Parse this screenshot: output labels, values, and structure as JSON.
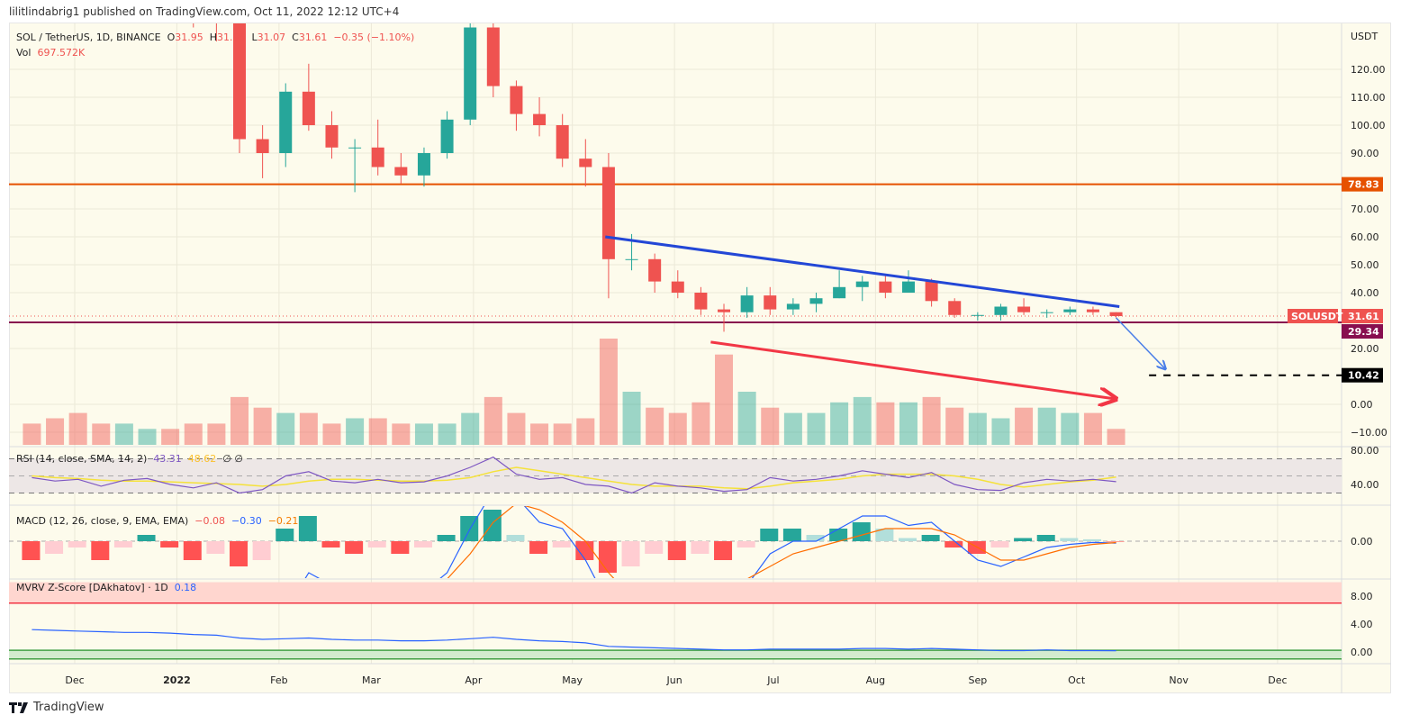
{
  "header": {
    "published": "lilitlindabrig1 published on TradingView.com, Oct 11, 2022 12:12 UTC+4"
  },
  "legend": {
    "symbol": "SOL / TetherUS, 1D, BINANCE",
    "o_label": "O",
    "o": "31.95",
    "h_label": "H",
    "h": "31.96",
    "l_label": "L",
    "l": "31.07",
    "c_label": "C",
    "c": "31.61",
    "change": "−0.35 (−1.10%)",
    "vol_label": "Vol",
    "vol": "697.572K",
    "rsi": "RSI (14, close, SMA, 14, 2)",
    "rsi_val": "43.31",
    "rsi_sma": "48.62",
    "rsi_extra": "∅ ∅",
    "macd": "MACD (12, 26, close, 9, EMA, EMA)",
    "macd_hist": "−0.08",
    "macd_line": "−0.30",
    "macd_signal": "−0.21",
    "mvrv": "MVRV Z-Score [DAkhatov] · 1D",
    "mvrv_val": "0.18"
  },
  "footer": {
    "brand": "TradingView"
  },
  "colors": {
    "up": "#26a69a",
    "down": "#ef5350",
    "background": "#fdfbec",
    "resistance": "#e65100",
    "support": "#880e4f",
    "trend_blue": "#2347d6",
    "trend_red": "#f23645"
  },
  "chart_data": {
    "type": "candlestick",
    "currency_label": "USDT",
    "price_ticks": [
      "120.00",
      "110.00",
      "100.00",
      "90.00",
      "70.00",
      "60.00",
      "50.00",
      "40.00",
      "20.00",
      "0.00",
      "−10.00"
    ],
    "price_tick_values": [
      120,
      110,
      100,
      90,
      70,
      60,
      50,
      40,
      20,
      0,
      -10
    ],
    "time_labels": [
      "Dec",
      "2022",
      "Feb",
      "Mar",
      "Apr",
      "May",
      "Jun",
      "Jul",
      "Aug",
      "Sep",
      "Oct",
      "Nov",
      "Dec"
    ],
    "time_label_dates": [
      "2021-12-01",
      "2022-01-01",
      "2022-02-01",
      "2022-03-01",
      "2022-04-01",
      "2022-05-01",
      "2022-06-01",
      "2022-07-01",
      "2022-08-01",
      "2022-09-01",
      "2022-10-01",
      "2022-11-01",
      "2022-12-01"
    ],
    "candles_weekly_approx": [
      [
        "2021-11-15",
        235,
        240,
        195,
        210
      ],
      [
        "2021-11-22",
        210,
        225,
        185,
        200
      ],
      [
        "2021-11-29",
        200,
        245,
        180,
        195
      ],
      [
        "2021-12-06",
        195,
        200,
        160,
        165
      ],
      [
        "2021-12-13",
        165,
        190,
        150,
        185
      ],
      [
        "2021-12-20",
        185,
        200,
        175,
        190
      ],
      [
        "2021-12-27",
        190,
        205,
        170,
        172
      ],
      [
        "2022-01-03",
        172,
        175,
        135,
        145
      ],
      [
        "2022-01-10",
        145,
        152,
        130,
        140
      ],
      [
        "2022-01-17",
        140,
        145,
        90,
        95
      ],
      [
        "2022-01-24",
        95,
        100,
        81,
        90
      ],
      [
        "2022-01-31",
        90,
        115,
        85,
        112
      ],
      [
        "2022-02-07",
        112,
        122,
        98,
        100
      ],
      [
        "2022-02-14",
        100,
        105,
        88,
        92
      ],
      [
        "2022-02-21",
        92,
        95,
        76,
        92
      ],
      [
        "2022-02-28",
        92,
        102,
        82,
        85
      ],
      [
        "2022-03-07",
        85,
        90,
        79,
        82
      ],
      [
        "2022-03-14",
        82,
        92,
        78,
        90
      ],
      [
        "2022-03-21",
        90,
        105,
        88,
        102
      ],
      [
        "2022-03-28",
        102,
        143,
        100,
        135
      ],
      [
        "2022-04-04",
        135,
        137,
        110,
        114
      ],
      [
        "2022-04-11",
        114,
        116,
        98,
        104
      ],
      [
        "2022-04-18",
        104,
        110,
        96,
        100
      ],
      [
        "2022-04-25",
        100,
        104,
        85,
        88
      ],
      [
        "2022-05-02",
        88,
        95,
        78,
        85
      ],
      [
        "2022-05-09",
        85,
        90,
        38,
        52
      ],
      [
        "2022-05-16",
        52,
        61,
        48,
        52
      ],
      [
        "2022-05-23",
        52,
        54,
        40,
        44
      ],
      [
        "2022-05-30",
        44,
        48,
        38,
        40
      ],
      [
        "2022-06-06",
        40,
        42,
        32,
        34
      ],
      [
        "2022-06-13",
        34,
        36,
        26,
        33
      ],
      [
        "2022-06-20",
        33,
        42,
        31,
        39
      ],
      [
        "2022-06-27",
        39,
        42,
        32,
        34
      ],
      [
        "2022-07-04",
        34,
        38,
        32,
        36
      ],
      [
        "2022-07-11",
        36,
        40,
        33,
        38
      ],
      [
        "2022-07-18",
        38,
        48,
        38,
        42
      ],
      [
        "2022-07-25",
        42,
        46,
        37,
        44
      ],
      [
        "2022-08-01",
        44,
        46,
        38,
        40
      ],
      [
        "2022-08-08",
        40,
        48,
        40,
        44
      ],
      [
        "2022-08-15",
        44,
        45,
        35,
        37
      ],
      [
        "2022-08-22",
        37,
        38,
        31,
        32
      ],
      [
        "2022-08-29",
        32,
        33,
        30,
        32
      ],
      [
        "2022-09-05",
        32,
        36,
        30,
        35
      ],
      [
        "2022-09-12",
        35,
        38,
        32,
        33
      ],
      [
        "2022-09-19",
        33,
        34,
        31,
        33
      ],
      [
        "2022-09-26",
        33,
        35,
        32,
        34
      ],
      [
        "2022-10-03",
        34,
        35,
        32,
        33
      ],
      [
        "2022-10-10",
        33,
        33,
        31.07,
        31.61
      ]
    ],
    "volume_relative": [
      0.2,
      0.25,
      0.3,
      0.2,
      0.2,
      0.15,
      0.15,
      0.2,
      0.2,
      0.45,
      0.35,
      0.3,
      0.3,
      0.2,
      0.25,
      0.25,
      0.2,
      0.2,
      0.2,
      0.3,
      0.45,
      0.3,
      0.2,
      0.2,
      0.25,
      1.0,
      0.5,
      0.35,
      0.3,
      0.4,
      0.85,
      0.5,
      0.35,
      0.3,
      0.3,
      0.4,
      0.45,
      0.4,
      0.4,
      0.45,
      0.35,
      0.3,
      0.25,
      0.35,
      0.35,
      0.3,
      0.3,
      0.15
    ],
    "horizontal_lines": [
      {
        "value": 78.83,
        "label": "78.83",
        "color": "#e65100",
        "style": "solid"
      },
      {
        "value": 29.34,
        "label": "29.34",
        "color": "#880e4f",
        "style": "solid"
      },
      {
        "value": 10.42,
        "label": "10.42",
        "color": "#000000",
        "style": "dashed",
        "from": "2022-10-23"
      }
    ],
    "last_price": {
      "value": 31.61,
      "label": "31.61",
      "symbol": "SOLUSDT",
      "color": "#ef5350"
    },
    "trendlines": [
      {
        "from": [
          "2022-05-11",
          60
        ],
        "to": [
          "2022-10-14",
          35
        ],
        "color": "#2347d6",
        "arrow": false
      },
      {
        "from": [
          "2022-06-12",
          22.3
        ],
        "to": [
          "2022-10-13",
          1.9
        ],
        "color": "#f23645",
        "arrow": true
      },
      {
        "from": [
          "2022-10-13",
          31
        ],
        "to": [
          "2022-10-28",
          12.6
        ],
        "color": "#4a7ee8",
        "arrow": true
      }
    ],
    "rsi": {
      "ticks": [
        "80.00",
        "40.00"
      ],
      "tick_values": [
        80,
        40
      ],
      "bands": [
        70,
        30
      ],
      "values": [
        48,
        44,
        46,
        38,
        45,
        47,
        40,
        36,
        42,
        30,
        34,
        50,
        55,
        44,
        42,
        46,
        42,
        43,
        50,
        60,
        72,
        52,
        46,
        48,
        40,
        38,
        30,
        42,
        38,
        36,
        32,
        34,
        48,
        44,
        46,
        50,
        56,
        52,
        48,
        54,
        40,
        34,
        33,
        42,
        46,
        44,
        46,
        43.31
      ],
      "sma": [
        50,
        48,
        47,
        45,
        44,
        44,
        43,
        42,
        41,
        40,
        38,
        40,
        44,
        46,
        46,
        45,
        44,
        44,
        45,
        48,
        55,
        60,
        56,
        52,
        48,
        44,
        40,
        38,
        38,
        38,
        36,
        35,
        38,
        42,
        44,
        46,
        50,
        52,
        52,
        52,
        50,
        46,
        40,
        37,
        40,
        43,
        45,
        48.62
      ]
    },
    "macd": {
      "ticks": [
        "0.00"
      ],
      "tick_values": [
        0
      ],
      "histogram": [
        -3,
        -2,
        -1,
        -3,
        -1,
        1,
        -1,
        -3,
        -2,
        -4,
        -3,
        2,
        4,
        -1,
        -2,
        -1,
        -2,
        -1,
        1,
        4,
        5,
        1,
        -2,
        -1,
        -3,
        -5,
        -4,
        -2,
        -3,
        -2,
        -3,
        -1,
        2,
        2,
        1,
        2,
        3,
        2,
        0.5,
        1,
        -1,
        -2,
        -1,
        0.5,
        1,
        0.5,
        0.3,
        -0.08
      ],
      "macd": [
        -13,
        -11,
        -10,
        -13,
        -12,
        -9,
        -10,
        -13,
        -13,
        -17,
        -18,
        -11,
        -5,
        -7,
        -8,
        -7,
        -9,
        -8,
        -5,
        2,
        8,
        7,
        3,
        2,
        -3,
        -10,
        -13,
        -12,
        -13,
        -11,
        -11,
        -7,
        -2,
        0,
        0,
        2,
        4,
        4,
        2.5,
        3,
        0,
        -3,
        -4,
        -2.5,
        -1,
        -0.5,
        -0.2,
        -0.3
      ],
      "signal": [
        -10,
        -9,
        -9,
        -10,
        -11,
        -10,
        -9,
        -10,
        -11,
        -13,
        -15,
        -13,
        -9,
        -6,
        -6,
        -6,
        -7,
        -7,
        -6,
        -2,
        3,
        6,
        5,
        3,
        0,
        -5,
        -9,
        -10,
        -10,
        -9,
        -8,
        -6,
        -4,
        -2,
        -1,
        0,
        1,
        2,
        2,
        2,
        1,
        -1,
        -3,
        -3,
        -2,
        -1,
        -0.5,
        -0.21
      ]
    },
    "mvrv": {
      "ticks": [
        "8.00",
        "4.00",
        "0.00"
      ],
      "tick_values": [
        8,
        4,
        0
      ],
      "red_zone": [
        7,
        10
      ],
      "green_zone": [
        -1,
        0.25
      ],
      "values": [
        3.2,
        3.1,
        3.0,
        2.9,
        2.8,
        2.8,
        2.7,
        2.5,
        2.4,
        2.0,
        1.8,
        1.9,
        2.0,
        1.8,
        1.7,
        1.7,
        1.6,
        1.6,
        1.7,
        1.9,
        2.1,
        1.8,
        1.6,
        1.5,
        1.3,
        0.8,
        0.7,
        0.6,
        0.5,
        0.4,
        0.3,
        0.3,
        0.4,
        0.4,
        0.4,
        0.4,
        0.5,
        0.5,
        0.4,
        0.5,
        0.4,
        0.3,
        0.2,
        0.2,
        0.3,
        0.2,
        0.2,
        0.18
      ]
    }
  }
}
